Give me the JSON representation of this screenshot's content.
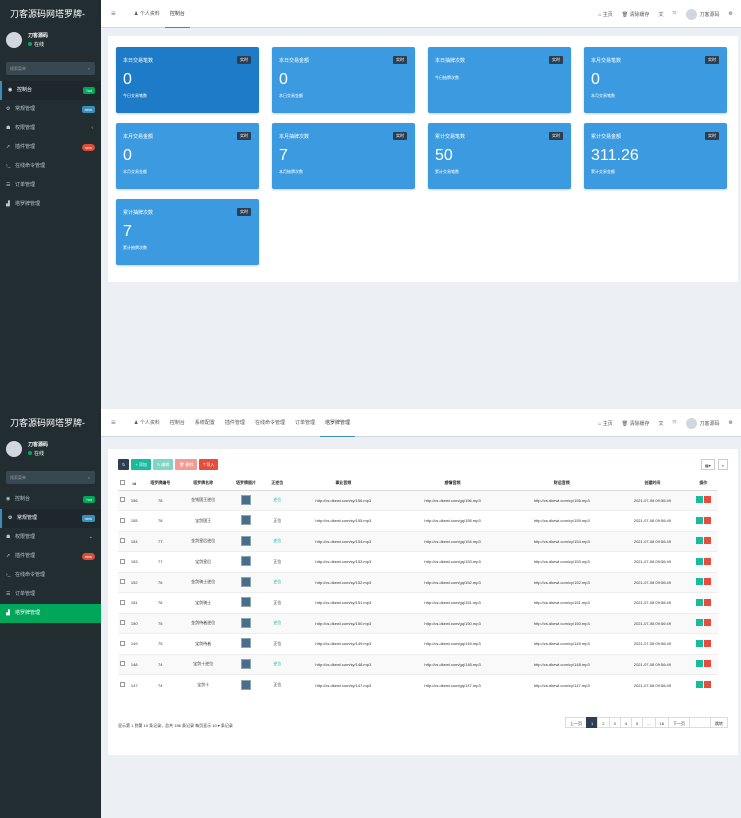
{
  "sidebar": {
    "logo": "刀客源码网塔罗牌-",
    "user_name": "刀客源码",
    "user_status": "在线",
    "search_placeholder": "搜索菜单",
    "items": [
      {
        "label": "控制台",
        "badge": "hot"
      },
      {
        "label": "常规管理",
        "badge": "new"
      },
      {
        "label": "权限管理"
      },
      {
        "label": "插件管理",
        "badge": "new"
      },
      {
        "label": "在线命令管理"
      },
      {
        "label": "订单管理"
      },
      {
        "label": "塔罗牌管理"
      }
    ]
  },
  "topbar": {
    "tabs1": [
      "个人资料",
      "控制台"
    ],
    "tabs2": [
      "个人资料",
      "控制台",
      "系统配置",
      "插件管理",
      "在线命令管理",
      "订单管理",
      "塔罗牌管理"
    ],
    "home": "主页",
    "clear": "清除缓存",
    "user": "刀客源码"
  },
  "dashboard": {
    "badge": "实时",
    "cards": [
      {
        "title": "本日交易笔数",
        "value": "0",
        "sub": "今日交易笔数"
      },
      {
        "title": "本日交易金额",
        "value": "0",
        "sub": "本日交易金额"
      },
      {
        "title": "本日抽牌次数",
        "value": "",
        "sub": "今日抽牌次数"
      },
      {
        "title": "本月交易笔数",
        "value": "0",
        "sub": "本月交易笔数"
      },
      {
        "title": "本月交易金额",
        "value": "0",
        "sub": "本月交易金额"
      },
      {
        "title": "本月抽牌次数",
        "value": "7",
        "sub": "本月抽牌次数"
      },
      {
        "title": "累计交易笔数",
        "value": "50",
        "sub": "累计交易笔数"
      },
      {
        "title": "累计交易金额",
        "value": "311.26",
        "sub": "累计交易金额"
      },
      {
        "title": "累计抽牌次数",
        "value": "7",
        "sub": "累计抽牌次数"
      }
    ]
  },
  "tarot": {
    "buttons": [
      "添加",
      "编辑",
      "删除",
      "导入"
    ],
    "columns": [
      "Id",
      "塔罗牌编号",
      "塔罗牌名称",
      "塔罗牌图片",
      "正逆位",
      "事业音频",
      "感情音频",
      "财运音频",
      "创建时间",
      "操作"
    ],
    "rows": [
      [
        "156",
        "78",
        "金钱国王逆位",
        "逆位",
        "http://cs.dkewl.com/sy/156.mp3",
        "http://cs.dkewl.com/gq/156.mp3",
        "http://cs.dkewl.com/cy/156.mp3",
        "2021-07-08 09:56:49"
      ],
      [
        "155",
        "78",
        "宝剑国王",
        "正位",
        "http://cs.dkewl.com/sy/155.mp3",
        "http://cs.dkewl.com/gq/155.mp3",
        "http://cs.dkewl.com/cy/155.mp3",
        "2021-07-08 09:56:49"
      ],
      [
        "154",
        "77",
        "金剑皇后逆位",
        "逆位",
        "http://cs.dkewl.com/sy/154.mp3",
        "http://cs.dkewl.com/gq/154.mp3",
        "http://cs.dkewl.com/cy/154.mp3",
        "2021-07-08 09:56:49"
      ],
      [
        "153",
        "77",
        "宝剑皇后",
        "正位",
        "http://cs.dkewl.com/sy/153.mp3",
        "http://cs.dkewl.com/gq/153.mp3",
        "http://cs.dkewl.com/cy/153.mp3",
        "2021-07-08 09:56:49"
      ],
      [
        "152",
        "76",
        "金剑骑士逆位",
        "逆位",
        "http://cs.dkewl.com/sy/152.mp3",
        "http://cs.dkewl.com/gq/152.mp3",
        "http://cs.dkewl.com/cy/152.mp3",
        "2021-07-08 09:56:49"
      ],
      [
        "151",
        "76",
        "宝剑骑士",
        "正位",
        "http://cs.dkewl.com/sy/151.mp3",
        "http://cs.dkewl.com/gq/151.mp3",
        "http://cs.dkewl.com/cy/151.mp3",
        "2021-07-08 09:56:49"
      ],
      [
        "150",
        "75",
        "金剑侍者逆位",
        "逆位",
        "http://cs.dkewl.com/sy/150.mp3",
        "http://cs.dkewl.com/gq/150.mp3",
        "http://cs.dkewl.com/cy/150.mp3",
        "2021-07-08 09:56:49"
      ],
      [
        "149",
        "75",
        "宝剑侍者",
        "正位",
        "http://cs.dkewl.com/sy/149.mp3",
        "http://cs.dkewl.com/gq/149.mp3",
        "http://cs.dkewl.com/cy/149.mp3",
        "2021-07-08 09:56:49"
      ],
      [
        "148",
        "74",
        "宝剑十逆位",
        "逆位",
        "http://cs.dkewl.com/sy/148.mp3",
        "http://cs.dkewl.com/gq/148.mp3",
        "http://cs.dkewl.com/cy/148.mp3",
        "2021-07-08 09:56:49"
      ],
      [
        "147",
        "74",
        "宝剑十",
        "正位",
        "http://cs.dkewl.com/sy/147.mp3",
        "http://cs.dkewl.com/gq/147.mp3",
        "http://cs.dkewl.com/cy/147.mp3",
        "2021-07-08 09:56:49"
      ]
    ],
    "footer": "显示第 1 到第 10 条记录，总共 156 条记录 每页显示 10 ▾ 条记录",
    "pager": [
      "上一页",
      "1",
      "2",
      "3",
      "4",
      "5",
      "...",
      "16",
      "下一页",
      "",
      "跳转"
    ]
  }
}
